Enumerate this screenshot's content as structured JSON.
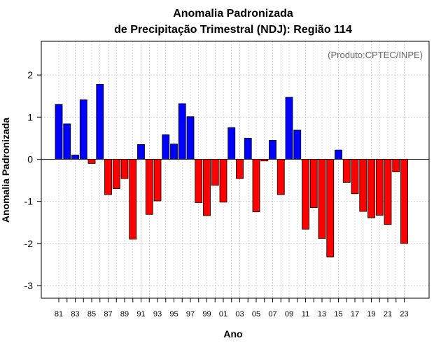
{
  "chart_data": {
    "type": "bar",
    "title_line1": "Anomalia Padronizada",
    "title_line2": "de Precipitação Trimestral (NDJ): Região 114",
    "xlabel": "Ano",
    "ylabel": "Anomalia Padronizada",
    "credit": "(Produto:CPTEC/INPE)",
    "ylim": [
      -3.3,
      2.8
    ],
    "yticks": [
      -3,
      -2,
      -1,
      0,
      1,
      2
    ],
    "ytick_labels": [
      "-3",
      "-2",
      "-1",
      "0",
      "1",
      "2"
    ],
    "xtick_labels": [
      "81",
      "83",
      "85",
      "87",
      "89",
      "91",
      "93",
      "95",
      "97",
      "99",
      "01",
      "03",
      "05",
      "07",
      "09",
      "11",
      "13",
      "15",
      "17",
      "19",
      "21",
      "23"
    ],
    "categories": [
      "81",
      "82",
      "83",
      "84",
      "85",
      "86",
      "87",
      "88",
      "89",
      "90",
      "91",
      "92",
      "93",
      "94",
      "95",
      "96",
      "97",
      "98",
      "99",
      "00",
      "01",
      "02",
      "03",
      "04",
      "05",
      "06",
      "07",
      "08",
      "09",
      "10",
      "11",
      "12",
      "13",
      "14",
      "15",
      "16",
      "17",
      "18",
      "19",
      "20",
      "21",
      "22",
      "23"
    ],
    "values": [
      1.3,
      0.84,
      0.1,
      1.41,
      -0.1,
      1.78,
      -0.84,
      -0.7,
      -0.46,
      -1.9,
      0.35,
      -1.31,
      -0.99,
      0.58,
      0.36,
      1.32,
      1.01,
      -1.03,
      -1.34,
      -0.62,
      -1.02,
      0.75,
      -0.46,
      0.5,
      -1.25,
      -0.04,
      0.45,
      -0.84,
      1.47,
      0.69,
      -1.66,
      -1.15,
      -1.88,
      -2.32,
      0.22,
      -0.55,
      -0.82,
      -1.24,
      -1.39,
      -1.33,
      -1.55,
      -0.3,
      -2.0
    ],
    "colors": {
      "positive": "#0000ff",
      "negative": "#ff0000",
      "grid": "#cccccc",
      "frame": "#000000"
    },
    "grid": true
  }
}
